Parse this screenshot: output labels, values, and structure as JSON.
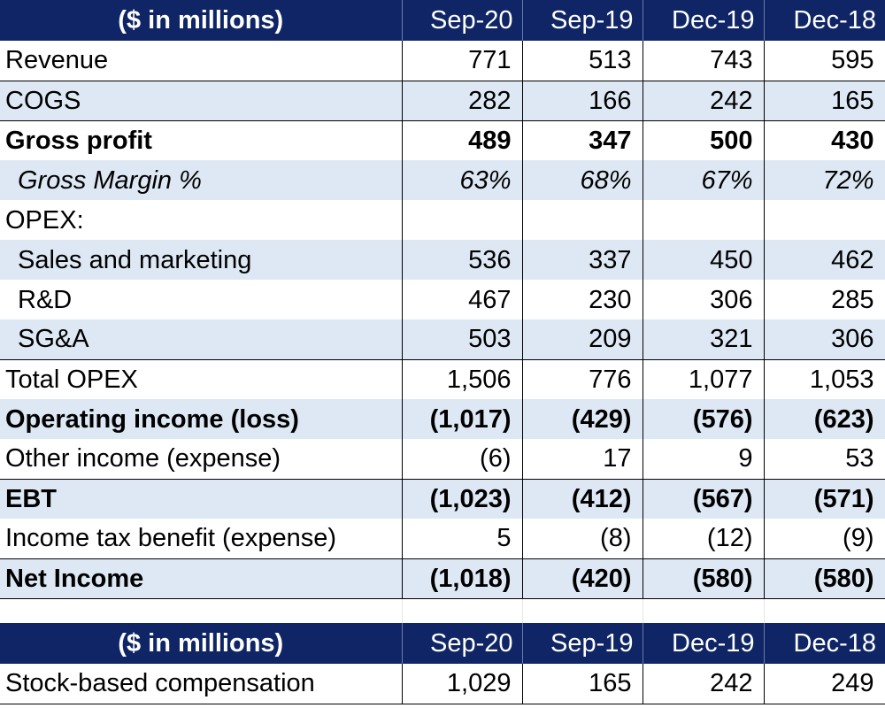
{
  "income_statement": {
    "header": {
      "label": "($ in millions)",
      "periods": [
        "Sep-20",
        "Sep-19",
        "Dec-19",
        "Dec-18"
      ]
    },
    "rows": [
      {
        "label": "Revenue",
        "values": [
          "771",
          "513",
          "743",
          "595"
        ]
      },
      {
        "label": "COGS",
        "values": [
          "282",
          "166",
          "242",
          "165"
        ]
      },
      {
        "label": "Gross profit",
        "values": [
          "489",
          "347",
          "500",
          "430"
        ]
      },
      {
        "label": "Gross Margin %",
        "values": [
          "63%",
          "68%",
          "67%",
          "72%"
        ]
      },
      {
        "label": "OPEX:",
        "values": [
          "",
          "",
          "",
          ""
        ]
      },
      {
        "label": "Sales and marketing",
        "values": [
          "536",
          "337",
          "450",
          "462"
        ]
      },
      {
        "label": "R&D",
        "values": [
          "467",
          "230",
          "306",
          "285"
        ]
      },
      {
        "label": "SG&A",
        "values": [
          "503",
          "209",
          "321",
          "306"
        ]
      },
      {
        "label": "Total OPEX",
        "values": [
          "1,506",
          "776",
          "1,077",
          "1,053"
        ]
      },
      {
        "label": "Operating income (loss)",
        "values": [
          "(1,017)",
          "(429)",
          "(576)",
          "(623)"
        ]
      },
      {
        "label": "Other income (expense)",
        "values": [
          "(6)",
          "17",
          "9",
          "53"
        ]
      },
      {
        "label": "EBT",
        "values": [
          "(1,023)",
          "(412)",
          "(567)",
          "(571)"
        ]
      },
      {
        "label": "Income tax benefit (expense)",
        "values": [
          "5",
          "(8)",
          "(12)",
          "(9)"
        ]
      },
      {
        "label": "Net Income",
        "values": [
          "(1,018)",
          "(420)",
          "(580)",
          "(580)"
        ]
      }
    ]
  },
  "stock_comp": {
    "header": {
      "label": "($ in millions)",
      "periods": [
        "Sep-20",
        "Sep-19",
        "Dec-19",
        "Dec-18"
      ]
    },
    "rows": [
      {
        "label": "Stock-based compensation",
        "values": [
          "1,029",
          "165",
          "242",
          "249"
        ]
      }
    ]
  },
  "colors": {
    "header_bg": "#0f2565",
    "header_text": "#ffffff",
    "shade_bg": "#dde8f4"
  }
}
